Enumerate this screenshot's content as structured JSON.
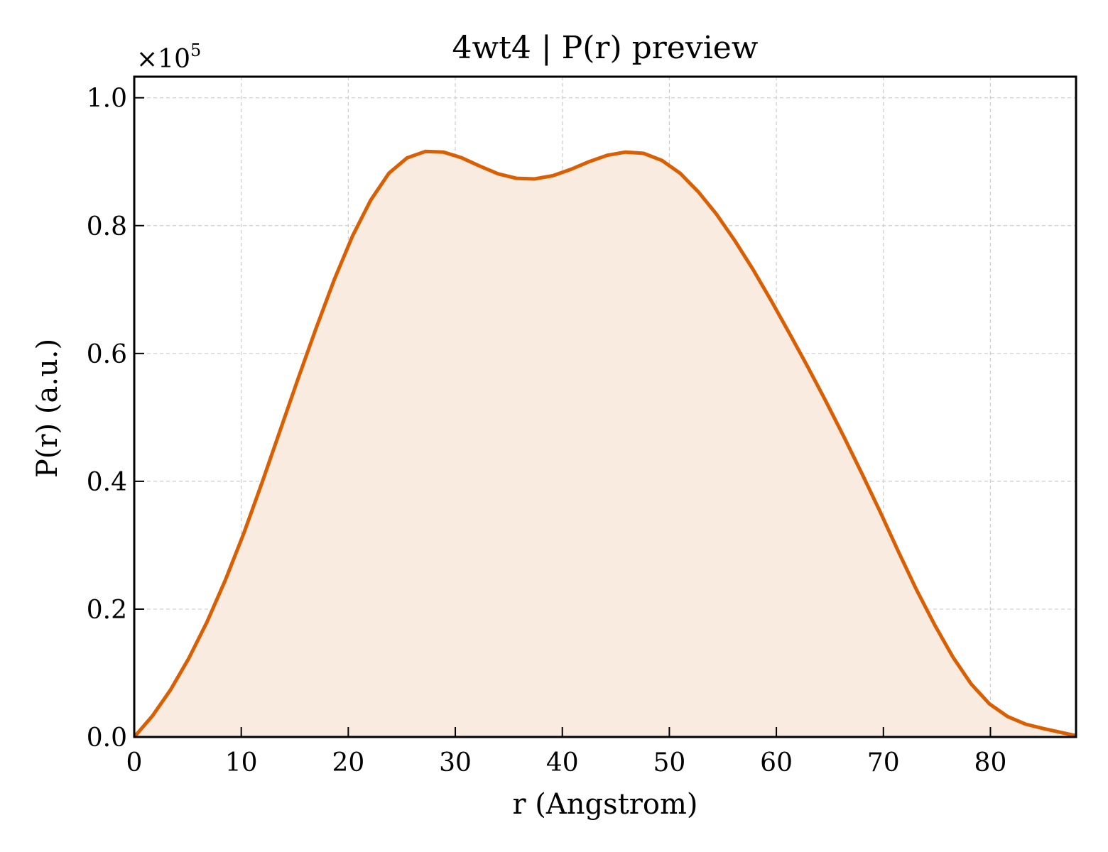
{
  "chart_data": {
    "type": "area",
    "title": "4wt4 | P(r) preview",
    "xlabel": "r (Angstrom)",
    "ylabel": "P(r) (a.u.)",
    "y_multiplier": {
      "base": "×10",
      "exponent": "5"
    },
    "xlim": [
      0,
      88
    ],
    "ylim": [
      0,
      1.033
    ],
    "x_ticks": [
      0,
      10,
      20,
      30,
      40,
      50,
      60,
      70,
      80
    ],
    "x_tick_labels": [
      "0",
      "10",
      "20",
      "30",
      "40",
      "50",
      "60",
      "70",
      "80"
    ],
    "y_ticks": [
      0.0,
      0.2,
      0.4,
      0.6,
      0.8,
      1.0
    ],
    "y_tick_labels": [
      "0.0",
      "0.2",
      "0.4",
      "0.6",
      "0.8",
      "1.0"
    ],
    "grid": true,
    "line_color": "#d95f02",
    "fill_color": "#f9ebe0",
    "series": [
      {
        "x": [
          0,
          1.7,
          3.4,
          5.1,
          6.8,
          8.5,
          10.2,
          11.9,
          13.6,
          15.3,
          17.0,
          18.7,
          20.4,
          22.1,
          23.8,
          25.5,
          27.2,
          28.9,
          30.6,
          32.3,
          34.0,
          35.7,
          37.4,
          39.1,
          40.8,
          42.5,
          44.2,
          45.9,
          47.6,
          49.3,
          51.0,
          52.7,
          54.4,
          56.1,
          57.8,
          59.5,
          61.2,
          62.9,
          64.6,
          66.3,
          68.0,
          69.7,
          71.4,
          73.1,
          74.8,
          76.5,
          78.2,
          79.9,
          81.6,
          83.3,
          85.0,
          88.0
        ],
        "y": [
          0.0,
          0.033,
          0.074,
          0.123,
          0.18,
          0.245,
          0.317,
          0.396,
          0.478,
          0.56,
          0.64,
          0.716,
          0.784,
          0.84,
          0.882,
          0.906,
          0.916,
          0.915,
          0.906,
          0.893,
          0.881,
          0.874,
          0.873,
          0.878,
          0.888,
          0.9,
          0.91,
          0.915,
          0.913,
          0.902,
          0.882,
          0.853,
          0.818,
          0.777,
          0.732,
          0.683,
          0.632,
          0.58,
          0.526,
          0.47,
          0.412,
          0.352,
          0.29,
          0.23,
          0.175,
          0.125,
          0.083,
          0.052,
          0.032,
          0.02,
          0.013,
          0.002
        ]
      }
    ]
  }
}
